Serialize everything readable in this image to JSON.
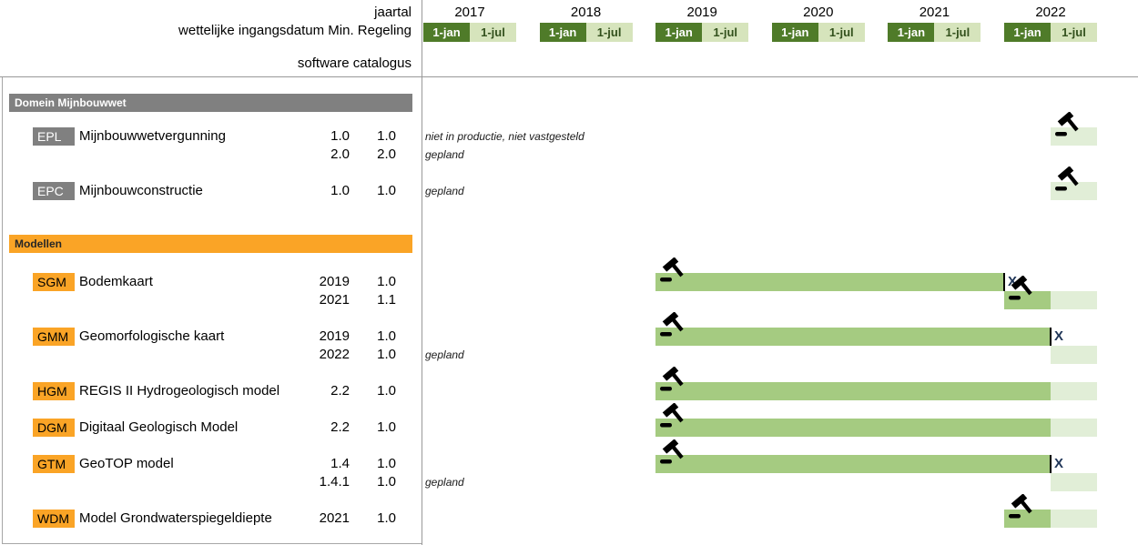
{
  "header": {
    "jaartal_label": "jaartal",
    "ingangsdatum_label": "wettelijke ingangsdatum Min. Regeling",
    "software_label": "software",
    "catalogus_label": "catalogus",
    "years": [
      "2017",
      "2018",
      "2019",
      "2020",
      "2021",
      "2022"
    ],
    "jan_label": "1-jan",
    "jul_label": "1-jul"
  },
  "colors": {
    "dark_green": "#4f7b29",
    "cell_light_green": "#d6e4bc",
    "bar_actual": "#a5cb81",
    "bar_planned": "#e1eed7",
    "gray": "#808080",
    "orange": "#faa426",
    "x_marker": "#1f3557"
  },
  "sections": [
    {
      "id": "domein-mijnbouwwet",
      "title": "Domein Mijnbouwwet",
      "theme": "gray",
      "rows": [
        {
          "code": "EPL",
          "name": "Mijnbouwwetvergunning",
          "lines": [
            {
              "software": "1.0",
              "catalogus": "1.0",
              "note": "niet in productie, niet vastgesteld"
            },
            {
              "software": "2.0",
              "catalogus": "2.0",
              "note": "gepland"
            }
          ]
        },
        {
          "code": "EPC",
          "name": "Mijnbouwconstructie",
          "lines": [
            {
              "software": "1.0",
              "catalogus": "1.0",
              "note": "gepland"
            }
          ]
        }
      ]
    },
    {
      "id": "modellen",
      "title": "Modellen",
      "theme": "orange",
      "rows": [
        {
          "code": "SGM",
          "name": "Bodemkaart",
          "lines": [
            {
              "software": "2019",
              "catalogus": "1.0"
            },
            {
              "software": "2021",
              "catalogus": "1.1"
            }
          ]
        },
        {
          "code": "GMM",
          "name": "Geomorfologische kaart",
          "lines": [
            {
              "software": "2019",
              "catalogus": "1.0"
            },
            {
              "software": "2022",
              "catalogus": "1.0",
              "note": "gepland"
            }
          ]
        },
        {
          "code": "HGM",
          "name": "REGIS II Hydrogeologisch model",
          "lines": [
            {
              "software": "2.2",
              "catalogus": "1.0"
            }
          ]
        },
        {
          "code": "DGM",
          "name": "Digitaal Geologisch Model",
          "lines": [
            {
              "software": "2.2",
              "catalogus": "1.0"
            }
          ]
        },
        {
          "code": "GTM",
          "name": "GeoTOP model",
          "lines": [
            {
              "software": "1.4",
              "catalogus": "1.0"
            },
            {
              "software": "1.4.1",
              "catalogus": "1.0",
              "note": "gepland"
            }
          ]
        },
        {
          "code": "WDM",
          "name": "Model Grondwaterspiegeldiepte",
          "lines": [
            {
              "software": "2021",
              "catalogus": "1.0"
            }
          ]
        }
      ]
    }
  ],
  "chart_data": {
    "type": "gantt",
    "x_axis": {
      "years": [
        2017,
        2018,
        2019,
        2020,
        2021,
        2022
      ],
      "half_year_labels": [
        "1-jan",
        "1-jul"
      ],
      "units": "decimal years; x.0 = 1-jan cell start, x.4 = 1-jul cell start, x.8 = end of year cells"
    },
    "bars": [
      {
        "row": "EPL",
        "line": 0,
        "planned": [
          2022.4,
          2022.8
        ],
        "gavel": 2022.4
      },
      {
        "row": "EPC",
        "line": 0,
        "planned": [
          2022.4,
          2022.8
        ],
        "gavel": 2022.4
      },
      {
        "row": "SGM",
        "line": 0,
        "actual": [
          2019.0,
          2022.0
        ],
        "end_tick": true,
        "end_marker": "X",
        "gavel": 2019.0
      },
      {
        "row": "SGM",
        "line": 1,
        "actual": [
          2022.0,
          2022.4
        ],
        "planned": [
          2022.4,
          2022.8
        ],
        "gavel": 2022.0
      },
      {
        "row": "GMM",
        "line": 0,
        "actual": [
          2019.0,
          2022.4
        ],
        "end_tick": true,
        "end_marker": "X",
        "gavel": 2019.0
      },
      {
        "row": "GMM",
        "line": 1,
        "planned": [
          2022.4,
          2022.8
        ]
      },
      {
        "row": "HGM",
        "line": 0,
        "actual": [
          2019.0,
          2022.4
        ],
        "planned": [
          2022.4,
          2022.8
        ],
        "gavel": 2019.0
      },
      {
        "row": "DGM",
        "line": 0,
        "actual": [
          2019.0,
          2022.4
        ],
        "planned": [
          2022.4,
          2022.8
        ],
        "gavel": 2019.0
      },
      {
        "row": "GTM",
        "line": 0,
        "actual": [
          2019.0,
          2022.4
        ],
        "end_tick": true,
        "end_marker": "X",
        "gavel": 2019.0
      },
      {
        "row": "GTM",
        "line": 1,
        "planned": [
          2022.4,
          2022.8
        ]
      },
      {
        "row": "WDM",
        "line": 0,
        "actual": [
          2022.0,
          2022.4
        ],
        "planned": [
          2022.4,
          2022.8
        ],
        "gavel": 2022.0
      }
    ]
  }
}
